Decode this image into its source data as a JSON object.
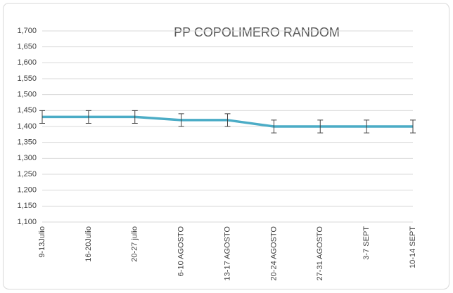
{
  "chart_data": {
    "type": "line",
    "title": "PP COPOLIMERO RANDOM",
    "categories": [
      "9-13Julio",
      "16-20Julio",
      "20-27 julio",
      "6-10 AGOSTO",
      "13-17 AGOSTO",
      "20-24 AGOSTO",
      "27-31 AGOSTO",
      "3-7 SEPT",
      "10-14 SEPT"
    ],
    "values": [
      1430,
      1430,
      1430,
      1420,
      1420,
      1400,
      1400,
      1400,
      1400
    ],
    "errors": [
      20,
      20,
      20,
      20,
      20,
      20,
      20,
      20,
      20
    ],
    "color": "#4bacc6",
    "ylim": [
      1100,
      1700
    ],
    "yticks": [
      {
        "value": 1100,
        "label": "1,100"
      },
      {
        "value": 1150,
        "label": "1,150"
      },
      {
        "value": 1200,
        "label": "1,200"
      },
      {
        "value": 1250,
        "label": "1,250"
      },
      {
        "value": 1300,
        "label": "1,300"
      },
      {
        "value": 1350,
        "label": "1,350"
      },
      {
        "value": 1400,
        "label": "1,400"
      },
      {
        "value": 1450,
        "label": "1,450"
      },
      {
        "value": 1500,
        "label": "1,500"
      },
      {
        "value": 1550,
        "label": "1,550"
      },
      {
        "value": 1600,
        "label": "1,600"
      },
      {
        "value": 1650,
        "label": "1,650"
      },
      {
        "value": 1700,
        "label": "1,700"
      }
    ],
    "grid": true
  }
}
